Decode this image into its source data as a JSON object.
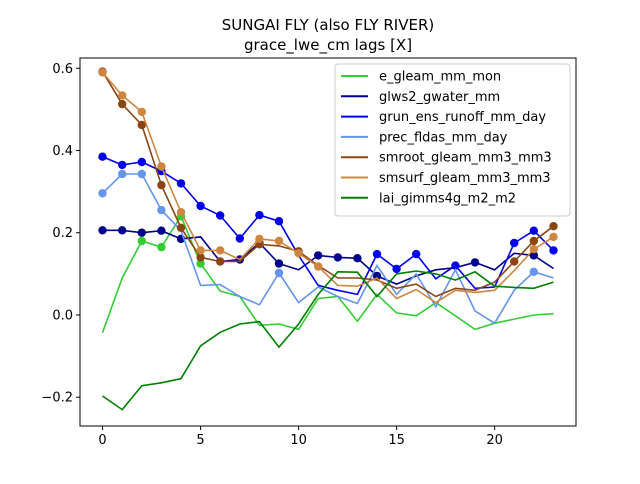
{
  "chart_data": {
    "type": "line",
    "title_line1": "SUNGAI FLY (also FLY RIVER)",
    "title_line2": "grace_lwe_cm lags [X]",
    "xlabel": "",
    "ylabel": "",
    "xlim": [
      -1.15,
      24.15
    ],
    "ylim": [
      -0.27,
      0.625
    ],
    "x_ticks": [
      0,
      5,
      10,
      15,
      20
    ],
    "y_ticks": [
      -0.2,
      0.0,
      0.2,
      0.4,
      0.6
    ],
    "y_tick_labels": [
      "−0.2",
      "0.0",
      "0.2",
      "0.4",
      "0.6"
    ],
    "grid": false,
    "legend_position": "top-right",
    "x": [
      0,
      1,
      2,
      3,
      4,
      5,
      6,
      7,
      8,
      9,
      10,
      11,
      12,
      13,
      14,
      15,
      16,
      17,
      18,
      19,
      20,
      21,
      22,
      23
    ],
    "series": [
      {
        "name": "e_gleam_mm_mon",
        "color": "#32cd32",
        "values": [
          -0.043,
          0.09,
          0.18,
          0.165,
          0.24,
          0.125,
          0.058,
          0.045,
          -0.025,
          -0.022,
          -0.035,
          0.04,
          0.045,
          -0.015,
          0.05,
          0.005,
          -0.002,
          0.03,
          -0.002,
          -0.035,
          -0.02,
          -0.01,
          0,
          0.003
        ],
        "markers": [
          2,
          3,
          4,
          5
        ]
      },
      {
        "name": "glws2_gwater_mm",
        "color": "#00008b",
        "values": [
          0.206,
          0.206,
          0.2,
          0.205,
          0.185,
          0.19,
          0.13,
          0.135,
          0.175,
          0.125,
          0.11,
          0.145,
          0.14,
          0.138,
          0.095,
          0.075,
          0.095,
          0.11,
          0.115,
          0.128,
          0.11,
          0.15,
          0.145,
          0.113
        ],
        "markers": [
          0,
          1,
          2,
          3,
          4,
          7,
          8,
          9,
          11,
          12,
          13,
          14,
          19,
          22
        ]
      },
      {
        "name": "grun_ens_runoff_mm_day",
        "color": "#0000ee",
        "values": [
          0.385,
          0.365,
          0.372,
          0.35,
          0.32,
          0.265,
          0.242,
          0.186,
          0.243,
          0.228,
          0.145,
          0.072,
          0.06,
          0.05,
          0.148,
          0.112,
          0.148,
          0.088,
          0.12,
          0.065,
          0.068,
          0.175,
          0.205,
          0.157
        ],
        "markers": [
          0,
          1,
          2,
          3,
          4,
          5,
          6,
          7,
          8,
          9,
          14,
          15,
          16,
          18,
          21,
          22,
          23
        ]
      },
      {
        "name": "prec_fldas_mm_day",
        "color": "#6495ed",
        "values": [
          0.296,
          0.343,
          0.343,
          0.255,
          0.205,
          0.072,
          0.074,
          0.045,
          0.025,
          0.102,
          0.03,
          0.068,
          0.045,
          0.028,
          0.12,
          0.05,
          0.1,
          0.02,
          0.11,
          0.01,
          -0.02,
          0.06,
          0.105,
          0.09
        ],
        "markers": [
          0,
          1,
          2,
          3,
          9,
          22
        ]
      },
      {
        "name": "smroot_gleam_mm3_mm3",
        "color": "#8b4513",
        "values": [
          0.592,
          0.513,
          0.462,
          0.316,
          0.212,
          0.14,
          0.13,
          0.13,
          0.172,
          0.168,
          0.155,
          0.12,
          0.09,
          0.09,
          0.085,
          0.065,
          0.075,
          0.045,
          0.065,
          0.06,
          0.08,
          0.13,
          0.18,
          0.216
        ],
        "markers": [
          0,
          1,
          2,
          3,
          4,
          5,
          6,
          8,
          10,
          21,
          22,
          23
        ]
      },
      {
        "name": "smsurf_gleam_mm3_mm3",
        "color": "#cd853f",
        "values": [
          0.59,
          0.534,
          0.494,
          0.361,
          0.25,
          0.157,
          0.157,
          0.135,
          0.185,
          0.18,
          0.15,
          0.118,
          0.072,
          0.07,
          0.09,
          0.04,
          0.062,
          0.03,
          0.06,
          0.055,
          0.06,
          0.108,
          0.16,
          0.19
        ],
        "markers": [
          0,
          1,
          2,
          3,
          4,
          5,
          6,
          8,
          9,
          10,
          11,
          22,
          23
        ]
      },
      {
        "name": "lai_gimms4g_m2_m2",
        "color": "#008000",
        "values": [
          -0.197,
          -0.23,
          -0.172,
          -0.165,
          -0.155,
          -0.075,
          -0.042,
          -0.022,
          -0.016,
          -0.078,
          -0.022,
          0.05,
          0.105,
          0.104,
          0.045,
          0.1,
          0.107,
          0.1,
          0.085,
          0.105,
          0.07,
          0.067,
          0.065,
          0.08
        ],
        "markers": []
      }
    ]
  }
}
